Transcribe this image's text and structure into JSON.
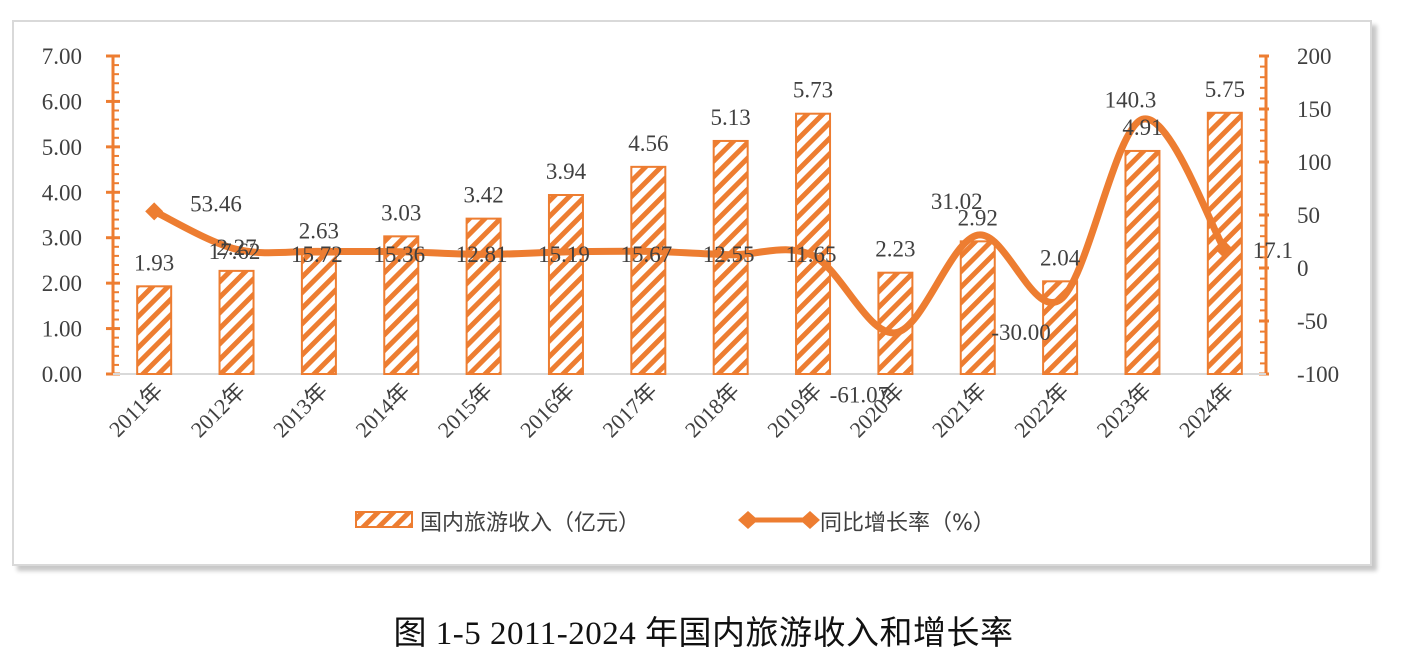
{
  "caption": "图  1-5 2011-2024 年国内旅游收入和增长率",
  "colors": {
    "accent": "#ED7D31",
    "text": "#404040",
    "axis_baseline": "#d9d9d9",
    "frame": "#d9d9d9"
  },
  "legend": {
    "bar_label": "国内旅游收入（亿元）",
    "line_label": "同比增长率（%）"
  },
  "left_axis": {
    "ticks": [
      "0.00",
      "1.00",
      "2.00",
      "3.00",
      "4.00",
      "5.00",
      "6.00",
      "7.00"
    ]
  },
  "right_axis": {
    "ticks": [
      "-100",
      "-50",
      "0",
      "50",
      "100",
      "150",
      "200"
    ]
  },
  "chart_data": {
    "type": "bar",
    "title": "图 1-5 2011-2024年国内旅游收入和增长率",
    "categories": [
      "2011年",
      "2012年",
      "2013年",
      "2014年",
      "2015年",
      "2016年",
      "2017年",
      "2018年",
      "2019年",
      "2020年",
      "2021年",
      "2022年",
      "2023年",
      "2024年"
    ],
    "series": [
      {
        "name": "国内旅游收入（亿元）",
        "type": "bar",
        "axis": "left",
        "values": [
          1.93,
          2.27,
          2.63,
          3.03,
          3.42,
          3.94,
          4.56,
          5.13,
          5.73,
          2.23,
          2.92,
          2.04,
          4.91,
          5.75
        ],
        "labels": [
          "1.93",
          "2.27",
          "2.63",
          "3.03",
          "3.42",
          "3.94",
          "4.56",
          "5.13",
          "5.73",
          "2.23",
          "2.92",
          "2.04",
          "4.91",
          "5.75"
        ]
      },
      {
        "name": "同比增长率（%）",
        "type": "line",
        "axis": "right",
        "smooth": true,
        "values": [
          53.46,
          17.62,
          15.72,
          15.36,
          12.81,
          15.19,
          15.67,
          12.55,
          11.65,
          -61.07,
          31.02,
          -30.0,
          140.3,
          17.1
        ],
        "labels": [
          "53.46",
          "17.62",
          "15.72",
          "15.36",
          "12.81",
          "15.19",
          "15.67",
          "12.55",
          "11.65",
          "-61.07",
          "31.02",
          "-30.00",
          "140.3",
          "17.1"
        ]
      }
    ],
    "xlabel": "",
    "ylabel": "国内旅游收入（亿元）",
    "y2label": "同比增长率（%）",
    "ylim": [
      0,
      7
    ],
    "y2lim": [
      -100,
      200
    ],
    "grid": false,
    "legend_position": "bottom"
  }
}
